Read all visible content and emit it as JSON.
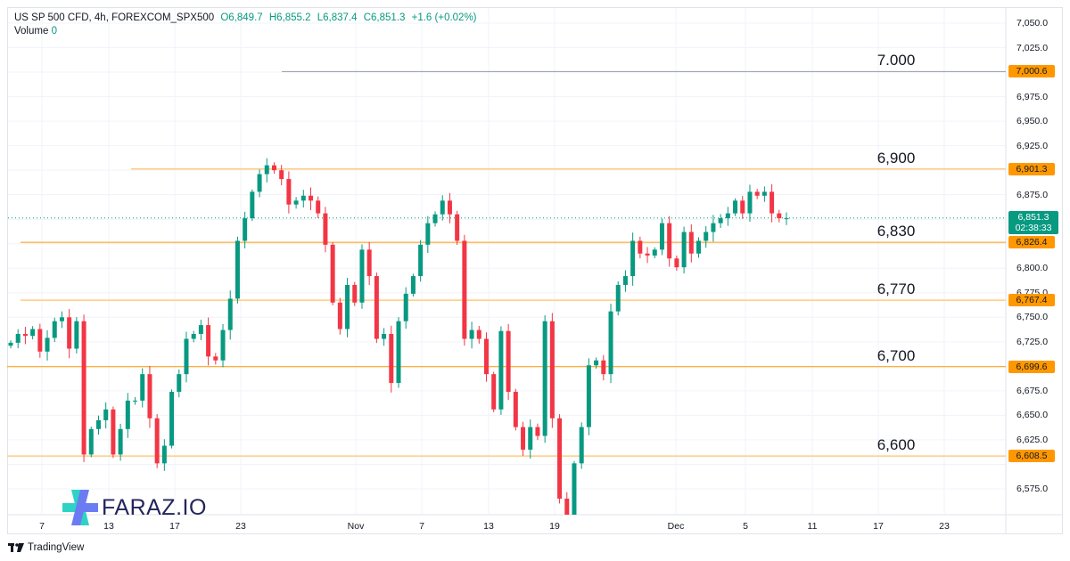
{
  "header": {
    "symbol": "US SP 500 CFD, 4h, FOREXCOM_SPX500",
    "open": "O6,849.7",
    "high": "H6,855.2",
    "low": "L6,837.4",
    "close": "C6,851.3",
    "change": "+1.6 (+0.02%)",
    "volume_label": "Volume",
    "volume_value": "0"
  },
  "price_axis": {
    "labels": [
      "7,050.0",
      "7,025.0",
      "6,975.0",
      "6,950.0",
      "6,925.0",
      "6,875.0",
      "6,800.0",
      "6,775.0",
      "6,750.0",
      "6,725.0",
      "6,675.0",
      "6,650.0",
      "6,625.0",
      "6,575.0"
    ],
    "current_price": "6,851.3",
    "countdown": "02:38:33"
  },
  "time_axis": {
    "labels": [
      "7",
      "13",
      "17",
      "23",
      "Nov",
      "7",
      "13",
      "19",
      "Dec",
      "5",
      "11",
      "17",
      "23"
    ]
  },
  "levels": [
    {
      "price": 7000.6,
      "badge": "7,000.6",
      "label": "7.000",
      "style": "thin-gray"
    },
    {
      "price": 6901.3,
      "badge": "6,901.3",
      "label": "6,900",
      "style": "light"
    },
    {
      "price": 6826.4,
      "badge": "6,826.4",
      "label": "6,830",
      "style": "solid"
    },
    {
      "price": 6767.4,
      "badge": "6,767.4",
      "label": "6,770",
      "style": "light"
    },
    {
      "price": 6699.6,
      "badge": "6,699.6",
      "label": "6,700",
      "style": "solid"
    },
    {
      "price": 6608.5,
      "badge": "6,608.5",
      "label": "6,600",
      "style": "light"
    }
  ],
  "colors": {
    "up": "#089981",
    "down": "#f23645",
    "level": "#ff9800",
    "level_light": "#ffcc80",
    "grid": "#f0f3fa"
  },
  "chart_data": {
    "type": "candlestick",
    "timeframe": "4h",
    "ylim": [
      6550,
      7060
    ],
    "x_ticks": [
      "7",
      "13",
      "17",
      "23",
      "Nov",
      "7",
      "13",
      "19",
      "Dec",
      "5",
      "11",
      "17",
      "23"
    ],
    "close": [
      6724,
      6733,
      6731,
      6738,
      6715,
      6729,
      6746,
      6750,
      6718,
      6746,
      6610,
      6636,
      6645,
      6656,
      6610,
      6636,
      6665,
      6665,
      6692,
      6647,
      6601,
      6619,
      6674,
      6692,
      6728,
      6733,
      6742,
      6710,
      6706,
      6737,
      6769,
      6828,
      6851,
      6878,
      6896,
      6905,
      6900,
      6891,
      6865,
      6869,
      6874,
      6869,
      6856,
      6824,
      6765,
      6738,
      6783,
      6765,
      6819,
      6792,
      6728,
      6733,
      6683,
      6746,
      6774,
      6792,
      6824,
      6846,
      6855,
      6869,
      6855,
      6828,
      6728,
      6737,
      6728,
      6692,
      6656,
      6736,
      6674,
      6638,
      6615,
      6638,
      6629,
      6746,
      6647,
      6565,
      6547,
      6601,
      6638,
      6701,
      6706,
      6692,
      6756,
      6783,
      6792,
      6828,
      6815,
      6813,
      6819,
      6846,
      6810,
      6801,
      6837,
      6815,
      6828,
      6837,
      6846,
      6851,
      6856,
      6869,
      6856,
      6878,
      6874,
      6878,
      6856,
      6851,
      6851
    ],
    "last_close": 6851.3
  },
  "branding": {
    "platform": "TradingView",
    "watermark": "FARAZ.IO"
  }
}
